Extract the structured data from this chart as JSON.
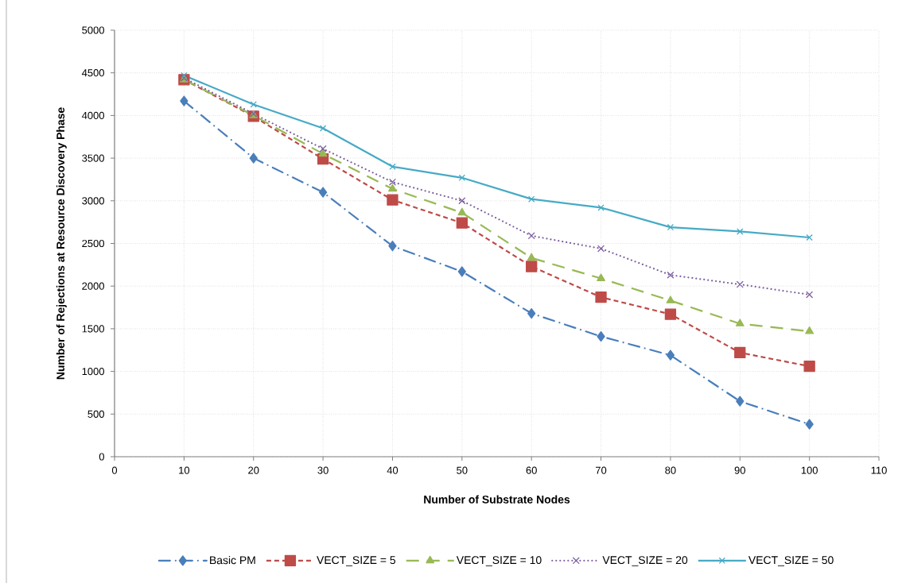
{
  "chart_data": {
    "type": "line",
    "xlabel": "Number of Substrate Nodes",
    "ylabel": "Number of Rejections at Resource Discovery Phase",
    "x": [
      10,
      20,
      30,
      40,
      50,
      60,
      70,
      80,
      90,
      100
    ],
    "xlim": [
      0,
      110
    ],
    "xticks": [
      0,
      10,
      20,
      30,
      40,
      50,
      60,
      70,
      80,
      90,
      100,
      110
    ],
    "ylim": [
      0,
      5000
    ],
    "yticks": [
      0,
      500,
      1000,
      1500,
      2000,
      2500,
      3000,
      3500,
      4000,
      4500,
      5000
    ],
    "grid": true,
    "legend": "bottom",
    "series": [
      {
        "name": "Basic PM",
        "color": "#4a7ebb",
        "marker": "diamond",
        "line_style": "dashdot",
        "values": [
          4170,
          3500,
          3100,
          2470,
          2170,
          1680,
          1410,
          1190,
          650,
          380
        ]
      },
      {
        "name": "VECT_SIZE = 5",
        "color": "#be4b48",
        "marker": "square",
        "line_style": "dashed",
        "values": [
          4420,
          3990,
          3490,
          3010,
          2740,
          2230,
          1870,
          1670,
          1220,
          1060
        ]
      },
      {
        "name": "VECT_SIZE = 10",
        "color": "#98b954",
        "marker": "triangle",
        "line_style": "longdashed",
        "values": [
          4420,
          4000,
          3550,
          3140,
          2860,
          2330,
          2090,
          1830,
          1560,
          1470
        ]
      },
      {
        "name": "VECT_SIZE = 20",
        "color": "#7d60a0",
        "marker": "cross",
        "line_style": "dotted",
        "values": [
          4440,
          4020,
          3610,
          3220,
          3000,
          2590,
          2440,
          2130,
          2020,
          1900
        ]
      },
      {
        "name": "VECT_SIZE = 50",
        "color": "#46aac5",
        "marker": "cross",
        "line_style": "solid",
        "values": [
          4470,
          4130,
          3850,
          3400,
          3270,
          3020,
          2920,
          2690,
          2640,
          2570
        ]
      }
    ]
  }
}
